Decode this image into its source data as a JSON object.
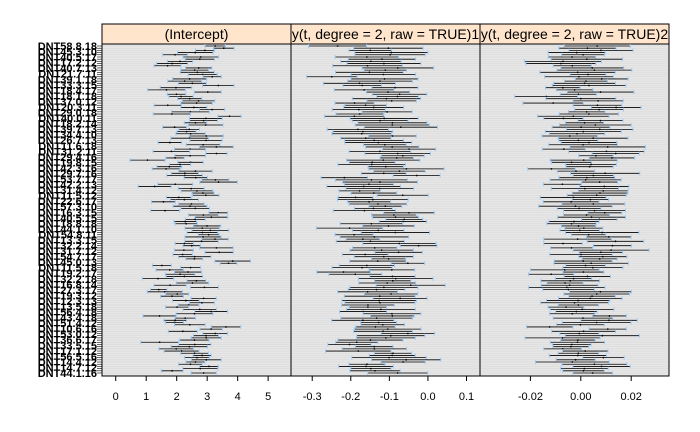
{
  "chart_data": {
    "type": "dotplot-interval",
    "panels": [
      {
        "title": "(Intercept)",
        "xlim": [
          -0.45,
          5.75
        ],
        "ticks": [
          0,
          1,
          2,
          3,
          4,
          5
        ],
        "tick_labels": [
          "0",
          "1",
          "2",
          "3",
          "4",
          "5"
        ]
      },
      {
        "title": "y(t, degree = 2, raw = TRUE)1",
        "xlim": [
          -0.355,
          0.135
        ],
        "ticks": [
          -0.3,
          -0.2,
          -0.1,
          0.0,
          0.1
        ],
        "tick_labels": [
          "-0.3",
          "-0.2",
          "-0.1",
          "0.0",
          "0.1"
        ]
      },
      {
        "title": "y(t, degree = 2, raw = TRUE)2",
        "xlim": [
          -0.04,
          0.035
        ],
        "ticks": [
          -0.02,
          0.0,
          0.02
        ],
        "tick_labels": [
          "-0.02",
          "0.00",
          "0.02"
        ]
      }
    ],
    "row_labels_top": "DNT58.8.18",
    "row_labels_bottom": "DNT44.1.16",
    "n_rows": 150,
    "center_hint": [
      2.5,
      -0.12,
      0.0
    ],
    "spread_hint": [
      0.9,
      0.07,
      0.01
    ],
    "halfwidth_hint": [
      0.45,
      0.07,
      0.011
    ],
    "colors": {
      "strip": "#ffe5cc",
      "panel_bg": "#e6e6e6",
      "tick": "#99ccff",
      "line": "#000000"
    }
  }
}
